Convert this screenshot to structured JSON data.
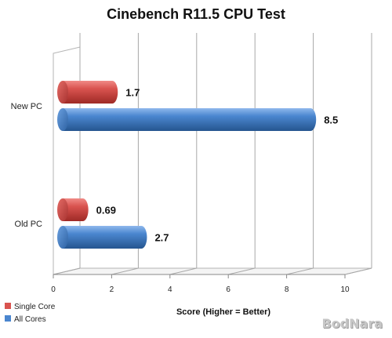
{
  "chart_data": {
    "type": "bar",
    "orientation": "horizontal",
    "title": "Cinebench R11.5 CPU Test",
    "xlabel": "Score (Higher = Better)",
    "ylabel": "",
    "categories": [
      "New PC",
      "Old PC"
    ],
    "series": [
      {
        "name": "Single Core",
        "values": [
          1.7,
          0.69
        ],
        "color": "#d9534f"
      },
      {
        "name": "All Cores",
        "values": [
          8.5,
          2.7
        ],
        "color": "#4a86cf"
      }
    ],
    "xlim": [
      0,
      10
    ],
    "xticks": [
      0,
      2,
      4,
      6,
      8,
      10
    ],
    "grid": true,
    "legend_position": "bottom-left",
    "style": "3d-cylinder"
  },
  "watermark": "BodNara"
}
